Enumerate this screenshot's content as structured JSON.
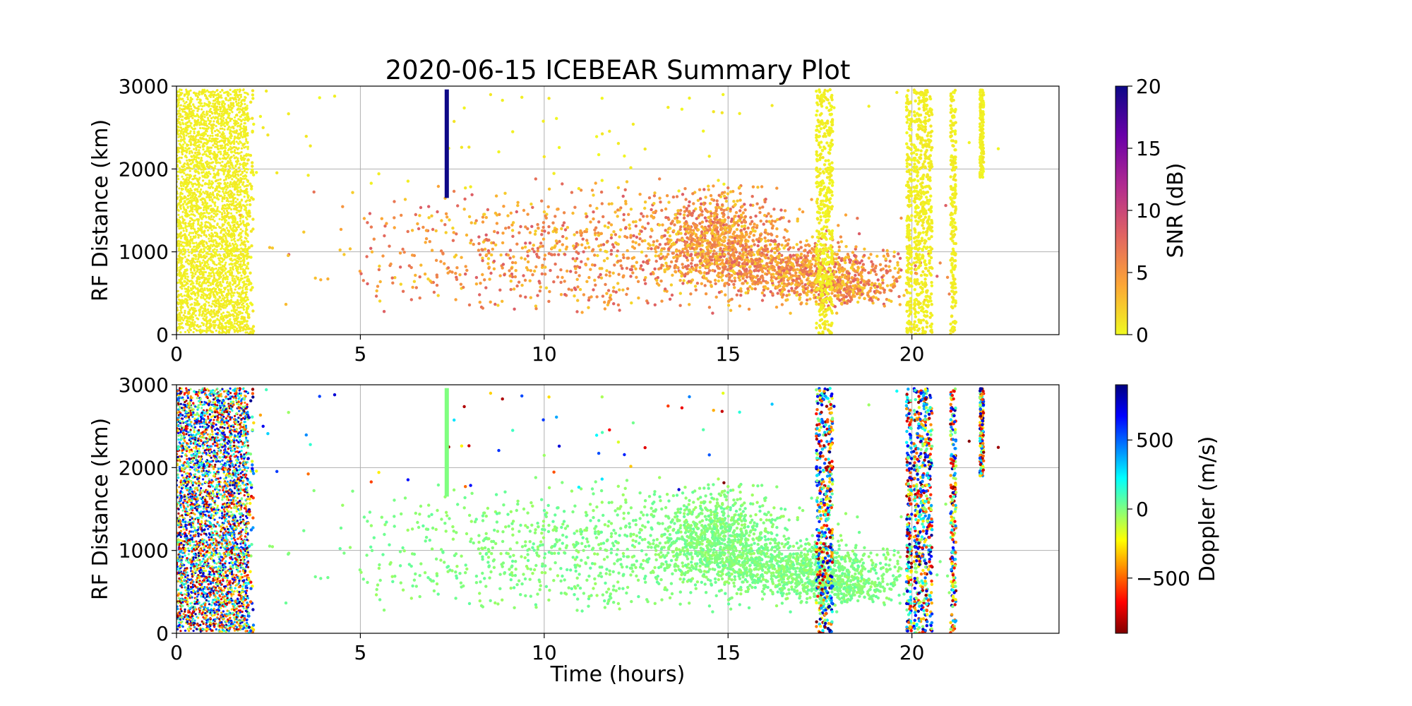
{
  "chart_data": [
    {
      "type": "scatter",
      "title": "2020-06-15 ICEBEAR Summary Plot",
      "xlabel": "",
      "ylabel": "RF Distance (km)",
      "xlim": [
        0,
        24
      ],
      "ylim": [
        0,
        3000
      ],
      "x_ticks": [
        "0",
        "5",
        "10",
        "15",
        "20"
      ],
      "y_ticks": [
        "0",
        "1000",
        "2000",
        "3000"
      ],
      "grid": true,
      "color_variable": "SNR",
      "colorbar": {
        "label": "SNR (dB)",
        "range": [
          0,
          20
        ],
        "ticks": [
          "0",
          "5",
          "10",
          "15",
          "20"
        ],
        "colormap": "plasma_r",
        "colors": [
          "#f0f921",
          "#fca636",
          "#e16462",
          "#b12a90",
          "#6a00a8",
          "#0d0887"
        ]
      },
      "features": {
        "dense_block": {
          "x_range": [
            0,
            1.95
          ],
          "y_range": [
            20,
            2960
          ],
          "value": 0.5
        },
        "vertical_bar": {
          "x": 7.35,
          "y_range": [
            1650,
            2960
          ],
          "value": 20
        },
        "meteor_bands": [
          {
            "x_range": [
              17.4,
              17.85
            ],
            "y_range": [
              0,
              2960
            ]
          },
          {
            "x_range": [
              19.85,
              20.0
            ],
            "y_range": [
              0,
              2960
            ]
          },
          {
            "x_range": [
              20.05,
              20.55
            ],
            "y_range": [
              0,
              2960
            ]
          },
          {
            "x_range": [
              21.05,
              21.2
            ],
            "y_range": [
              0,
              2960
            ]
          },
          {
            "x_range": [
              21.85,
              21.95
            ],
            "y_range": [
              1900,
              2960
            ]
          }
        ],
        "scatter_clusters": [
          {
            "x_center": 14.8,
            "y_center": 1200,
            "x_spread": 1.6,
            "y_spread": 250,
            "count": 700
          },
          {
            "x_center": 16.5,
            "y_center": 800,
            "x_spread": 3.2,
            "y_spread": 150,
            "count": 900
          },
          {
            "x_center": 18.0,
            "y_center": 550,
            "x_spread": 1.5,
            "y_spread": 100,
            "count": 350
          },
          {
            "x_center": 11.0,
            "y_center": 1000,
            "x_spread": 6.0,
            "y_spread": 400,
            "count": 900
          }
        ]
      }
    },
    {
      "type": "scatter",
      "title": "",
      "xlabel": "Time (hours)",
      "ylabel": "RF Distance (km)",
      "xlim": [
        0,
        24
      ],
      "ylim": [
        0,
        3000
      ],
      "x_ticks": [
        "0",
        "5",
        "10",
        "15",
        "20"
      ],
      "y_ticks": [
        "0",
        "1000",
        "2000",
        "3000"
      ],
      "grid": true,
      "color_variable": "Doppler",
      "colorbar": {
        "label": "Doppler (m/s)",
        "range": [
          -900,
          900
        ],
        "ticks": [
          "−500",
          "0",
          "500"
        ],
        "tick_values": [
          -500,
          0,
          500
        ],
        "colormap": "jet_r",
        "colors": [
          "#800000",
          "#ff0000",
          "#ff8000",
          "#ffff00",
          "#80ff80",
          "#00ffff",
          "#0080ff",
          "#0000ff",
          "#000080"
        ]
      },
      "features": {
        "dense_block": {
          "x_range": [
            0,
            1.95
          ],
          "y_range": [
            20,
            2960
          ],
          "value": "mixed"
        },
        "vertical_bar": {
          "x": 7.35,
          "y_range": [
            1650,
            2960
          ],
          "value": 0
        },
        "meteor_bands": [
          {
            "x_range": [
              17.4,
              17.85
            ],
            "y_range": [
              0,
              2960
            ]
          },
          {
            "x_range": [
              19.85,
              20.0
            ],
            "y_range": [
              0,
              2960
            ]
          },
          {
            "x_range": [
              20.05,
              20.55
            ],
            "y_range": [
              0,
              2960
            ]
          },
          {
            "x_range": [
              21.05,
              21.2
            ],
            "y_range": [
              0,
              2960
            ]
          },
          {
            "x_range": [
              21.85,
              21.95
            ],
            "y_range": [
              1900,
              2960
            ]
          }
        ],
        "scatter_clusters": [
          {
            "x_center": 14.8,
            "y_center": 1200,
            "x_spread": 1.6,
            "y_spread": 250,
            "count": 700
          },
          {
            "x_center": 16.5,
            "y_center": 800,
            "x_spread": 3.2,
            "y_spread": 150,
            "count": 900
          },
          {
            "x_center": 18.0,
            "y_center": 550,
            "x_spread": 1.5,
            "y_spread": 100,
            "count": 350
          },
          {
            "x_center": 11.0,
            "y_center": 1000,
            "x_spread": 6.0,
            "y_spread": 400,
            "count": 900
          }
        ]
      }
    }
  ]
}
